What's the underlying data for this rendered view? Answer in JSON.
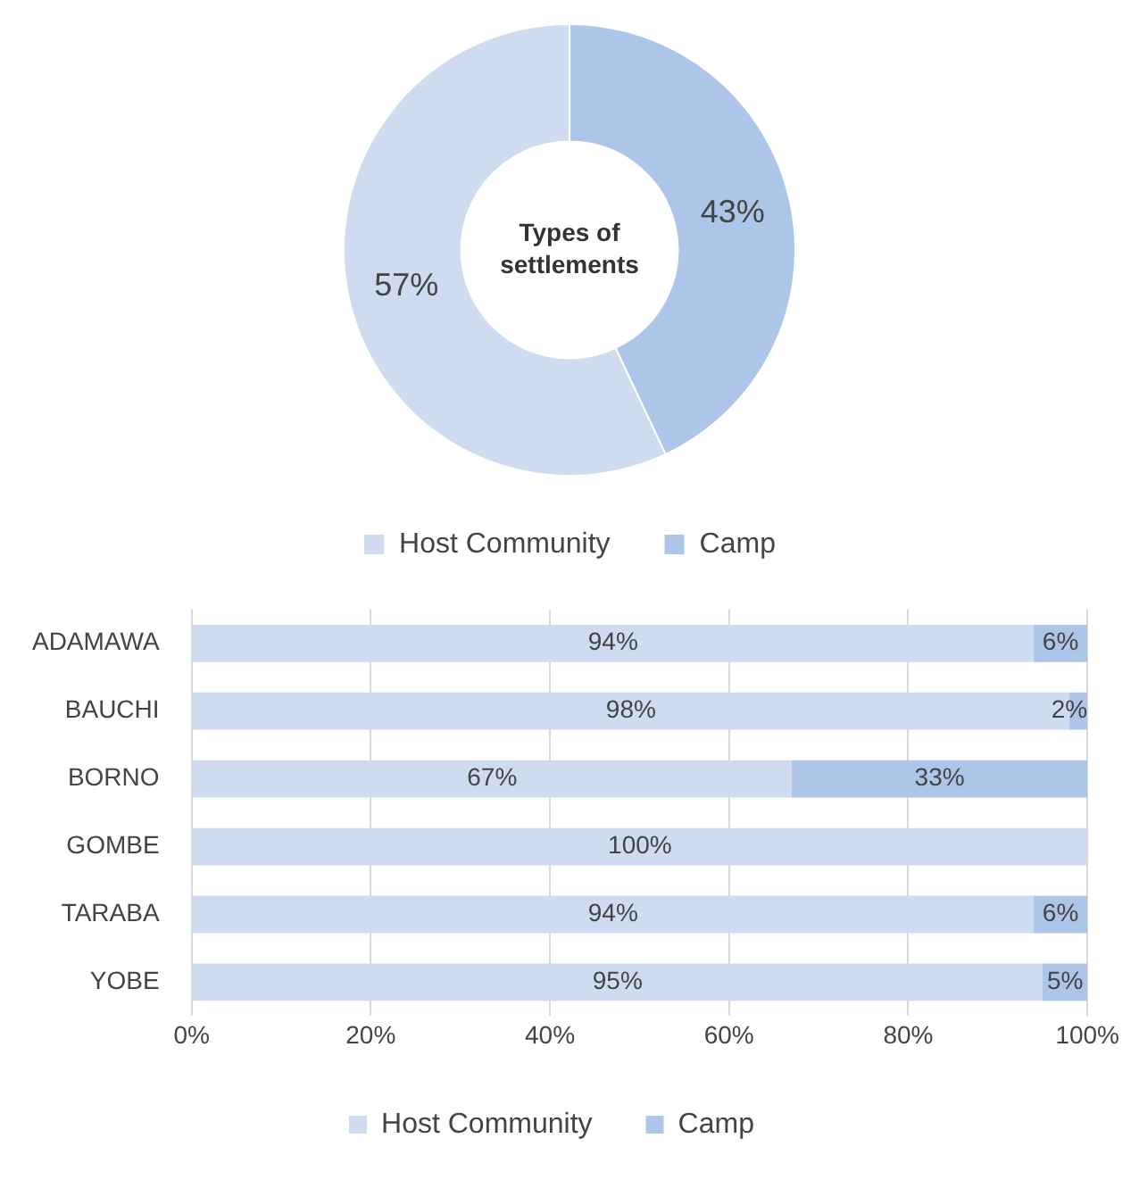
{
  "chart_data": [
    {
      "type": "donut",
      "title": "Types of settlements",
      "categories": [
        "Host Community",
        "Camp"
      ],
      "values": [
        57,
        43
      ],
      "colors": [
        "#cfdcef",
        "#adc5e8"
      ],
      "value_labels": [
        "57%",
        "43%"
      ],
      "legend": "bottom"
    },
    {
      "type": "bar",
      "orientation": "horizontal",
      "stacked": true,
      "categories": [
        "ADAMAWA",
        "BAUCHI",
        "BORNO",
        "GOMBE",
        "TARABA",
        "YOBE"
      ],
      "series": [
        {
          "name": "Host Community",
          "color": "#cfdcef",
          "values": [
            94,
            98,
            67,
            100,
            94,
            95
          ],
          "value_labels": [
            "94%",
            "98%",
            "67%",
            "100%",
            "94%",
            "95%"
          ]
        },
        {
          "name": "Camp",
          "color": "#adc5e8",
          "values": [
            6,
            2,
            33,
            0,
            6,
            5
          ],
          "value_labels": [
            "6%",
            "2%",
            "33%",
            null,
            "6%",
            "5%"
          ]
        }
      ],
      "xlim": [
        0,
        100
      ],
      "xticks": [
        {
          "value": 0,
          "label": "0%"
        },
        {
          "value": 20,
          "label": "20%"
        },
        {
          "value": 40,
          "label": "40%"
        },
        {
          "value": 60,
          "label": "60%"
        },
        {
          "value": 80,
          "label": "80%"
        },
        {
          "value": 100,
          "label": "100%"
        }
      ],
      "grid": "x",
      "legend": "bottom"
    }
  ]
}
